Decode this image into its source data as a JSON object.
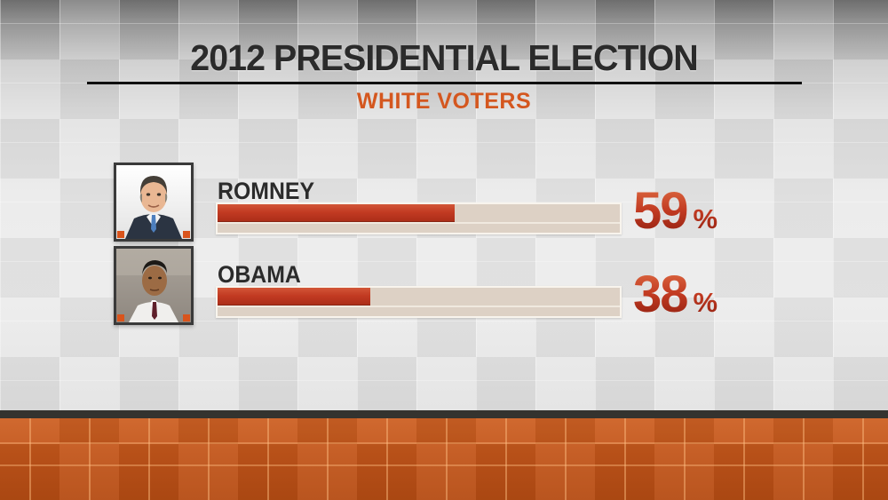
{
  "header": {
    "title": "2012 PRESIDENTIAL ELECTION",
    "subtitle": "WHITE VOTERS"
  },
  "rows": [
    {
      "name": "ROMNEY",
      "value": "59",
      "unit": "%",
      "percent": 59,
      "photo": "romney-portrait"
    },
    {
      "name": "OBAMA",
      "value": "38",
      "unit": "%",
      "percent": 38,
      "photo": "obama-portrait"
    }
  ],
  "chart_data": {
    "type": "bar",
    "orientation": "horizontal",
    "title": "2012 Presidential Election",
    "subtitle": "White Voters",
    "categories": [
      "ROMNEY",
      "OBAMA"
    ],
    "values": [
      59,
      38
    ],
    "unit": "%",
    "xlim": [
      0,
      100
    ],
    "grid": false,
    "legend": "none",
    "data_labels": [
      "59 %",
      "38 %"
    ]
  },
  "colors": {
    "accent_orange": "#d4571f",
    "bar_fill_red": "#c23a22",
    "bar_track_beige": "#ddd1c5",
    "title_dark": "#2b2b2b",
    "footer_tile_orange": "#c2561b",
    "footer_strip_dark": "#34332f"
  }
}
